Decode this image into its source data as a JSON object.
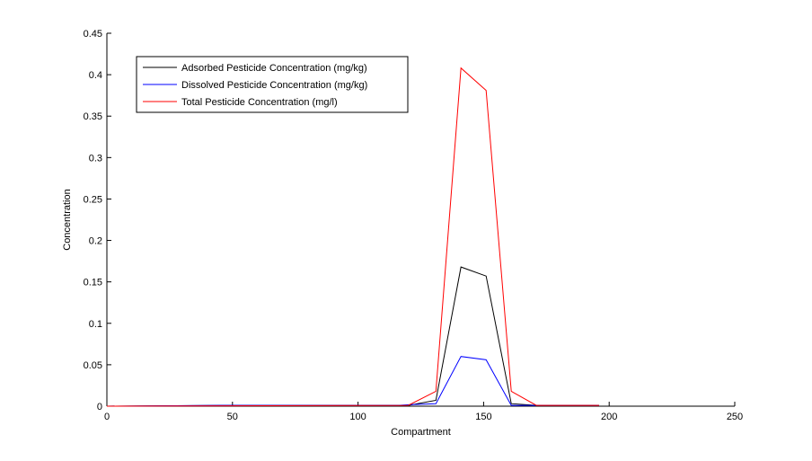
{
  "chart_data": {
    "type": "line",
    "title": "",
    "xlabel": "Compartment",
    "ylabel": "Concentration",
    "xlim": [
      0,
      250
    ],
    "ylim": [
      0,
      0.45
    ],
    "xticks": [
      0,
      50,
      100,
      150,
      200,
      250
    ],
    "yticks": [
      0,
      0.05,
      0.1,
      0.15,
      0.2,
      0.25,
      0.3,
      0.35,
      0.4,
      0.45
    ],
    "xtick_labels": [
      "0",
      "50",
      "100",
      "150",
      "200",
      "250"
    ],
    "ytick_labels": [
      "0",
      "0.05",
      "0.1",
      "0.15",
      "0.2",
      "0.25",
      "0.3",
      "0.35",
      "0.4",
      "0.45"
    ],
    "grid": false,
    "legend_position": "top-left",
    "series": [
      {
        "name": "Adsorbed Pesticide Concentration (mg/kg)",
        "color": "#000000",
        "x": [
          0,
          46,
          120,
          131,
          141,
          151,
          161,
          171,
          196
        ],
        "y": [
          0,
          0.001,
          0.001,
          0.007,
          0.168,
          0.157,
          0.003,
          0.001,
          0.001
        ]
      },
      {
        "name": "Dissolved Pesticide Concentration (mg/kg)",
        "color": "#0000ff",
        "x": [
          0,
          46,
          116,
          121,
          131,
          141,
          151,
          161,
          171,
          196
        ],
        "y": [
          0,
          0.001,
          0.001,
          0.002,
          0.003,
          0.06,
          0.056,
          0.001,
          0.001,
          0.001
        ]
      },
      {
        "name": "Total Pesticide Concentration (mg/l)",
        "color": "#ff0000",
        "x": [
          0,
          120,
          131,
          141,
          151,
          161,
          171,
          196
        ],
        "y": [
          0,
          0.001,
          0.018,
          0.408,
          0.381,
          0.018,
          0.001,
          0.001
        ]
      }
    ]
  }
}
